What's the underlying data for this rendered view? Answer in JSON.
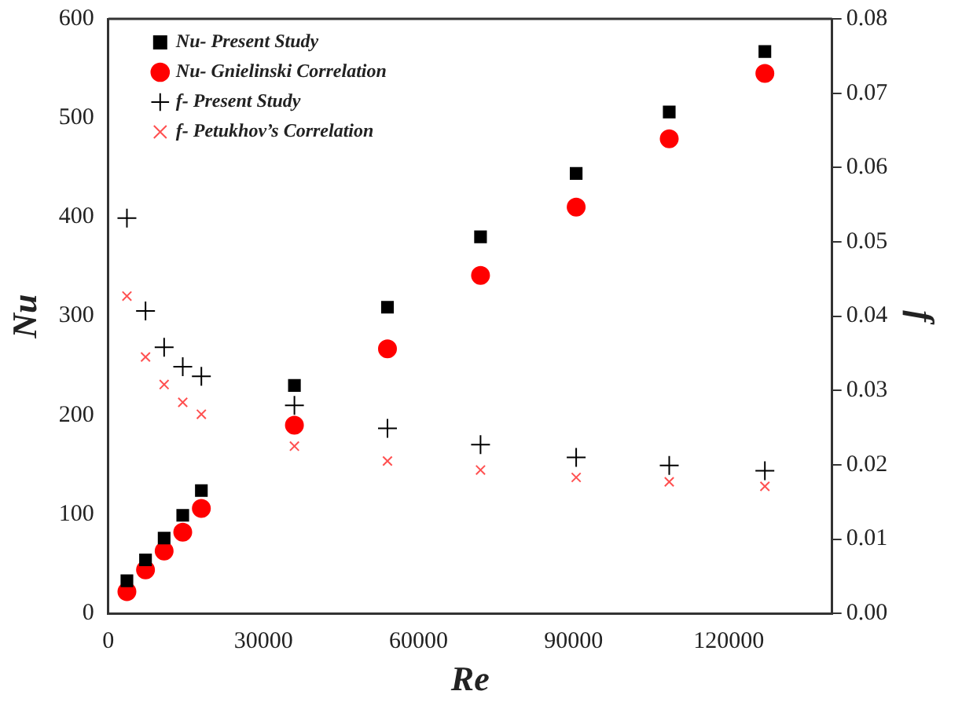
{
  "chart_data": {
    "type": "scatter",
    "xlabel": "Re",
    "ylabel": "Nu",
    "y2label": "f",
    "xlim": [
      0,
      140000
    ],
    "xticks": [
      0,
      30000,
      60000,
      90000,
      120000
    ],
    "ylim": [
      0,
      600
    ],
    "yticks": [
      0,
      100,
      200,
      300,
      400,
      500,
      600
    ],
    "y2lim": [
      0,
      0.08
    ],
    "y2ticks": [
      {
        "value": 0,
        "label": "0.00"
      },
      {
        "value": 0.01,
        "label": "0.01"
      },
      {
        "value": 0.02,
        "label": "0.02"
      },
      {
        "value": 0.03,
        "label": "0.03"
      },
      {
        "value": 0.04,
        "label": "0.04"
      },
      {
        "value": 0.05,
        "label": "0.05"
      },
      {
        "value": 0.06,
        "label": "0.06"
      },
      {
        "value": 0.07,
        "label": "0.07"
      },
      {
        "value": 0.08,
        "label": "0.08"
      }
    ],
    "x": [
      3600,
      7200,
      10800,
      14400,
      18000,
      36000,
      54000,
      72000,
      90500,
      108500,
      127000
    ],
    "grid": false,
    "legend": "top left",
    "series": [
      {
        "name": "Nu- Present Study",
        "color": "#000000",
        "marker": "square",
        "values": [
          33,
          54,
          76,
          99,
          124,
          230,
          309,
          380,
          444,
          506,
          567
        ]
      },
      {
        "name": "Nu- Gnielinski Correlation",
        "color": "#ff0000",
        "marker": "circle",
        "values": [
          22,
          44,
          63,
          82,
          106,
          190,
          267,
          341,
          410,
          479,
          545
        ]
      },
      {
        "name": "f- Present Study",
        "color": "#000000",
        "marker": "cross",
        "axis": "y2",
        "values": [
          0.0532,
          0.0407,
          0.0358,
          0.0332,
          0.0319,
          0.028,
          0.0249,
          0.0227,
          0.021,
          0.0199,
          0.0192
        ]
      },
      {
        "name": "f- Petukhov’s Correlation",
        "color": "#ff5050",
        "marker": "x",
        "axis": "y2",
        "values": [
          0.0427,
          0.0345,
          0.0308,
          0.0284,
          0.0268,
          0.0225,
          0.0205,
          0.0193,
          0.0183,
          0.0177,
          0.0171
        ]
      }
    ]
  }
}
